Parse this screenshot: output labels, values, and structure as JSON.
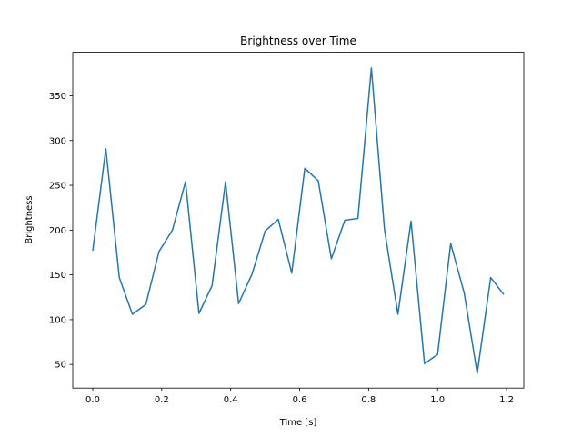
{
  "chart_data": {
    "type": "line",
    "title": "Brightness over Time",
    "xlabel": "Time [s]",
    "ylabel": "Brightness",
    "xlim": [
      -0.058,
      1.25
    ],
    "ylim": [
      23.6,
      398.6
    ],
    "grid": false,
    "xticks": [
      "0.0",
      "0.2",
      "0.4",
      "0.6",
      "0.8",
      "1.0",
      "1.2"
    ],
    "yticks": [
      "50",
      "100",
      "150",
      "200",
      "250",
      "300",
      "350"
    ],
    "color": "#1f77b4",
    "series": [
      {
        "name": "Brightness",
        "x": [
          0.0,
          0.038,
          0.077,
          0.115,
          0.154,
          0.192,
          0.231,
          0.269,
          0.308,
          0.346,
          0.385,
          0.423,
          0.462,
          0.5,
          0.538,
          0.577,
          0.615,
          0.654,
          0.692,
          0.731,
          0.769,
          0.808,
          0.846,
          0.885,
          0.923,
          0.962,
          1.0,
          1.038,
          1.077,
          1.115,
          1.154,
          1.192
        ],
        "values": [
          177,
          291,
          147,
          106,
          117,
          176,
          200,
          254,
          107,
          138,
          254,
          118,
          151,
          199,
          212,
          152,
          269,
          255,
          168,
          211,
          213,
          381,
          201,
          106,
          210,
          51,
          61,
          185,
          130,
          40,
          147,
          128
        ]
      }
    ]
  }
}
